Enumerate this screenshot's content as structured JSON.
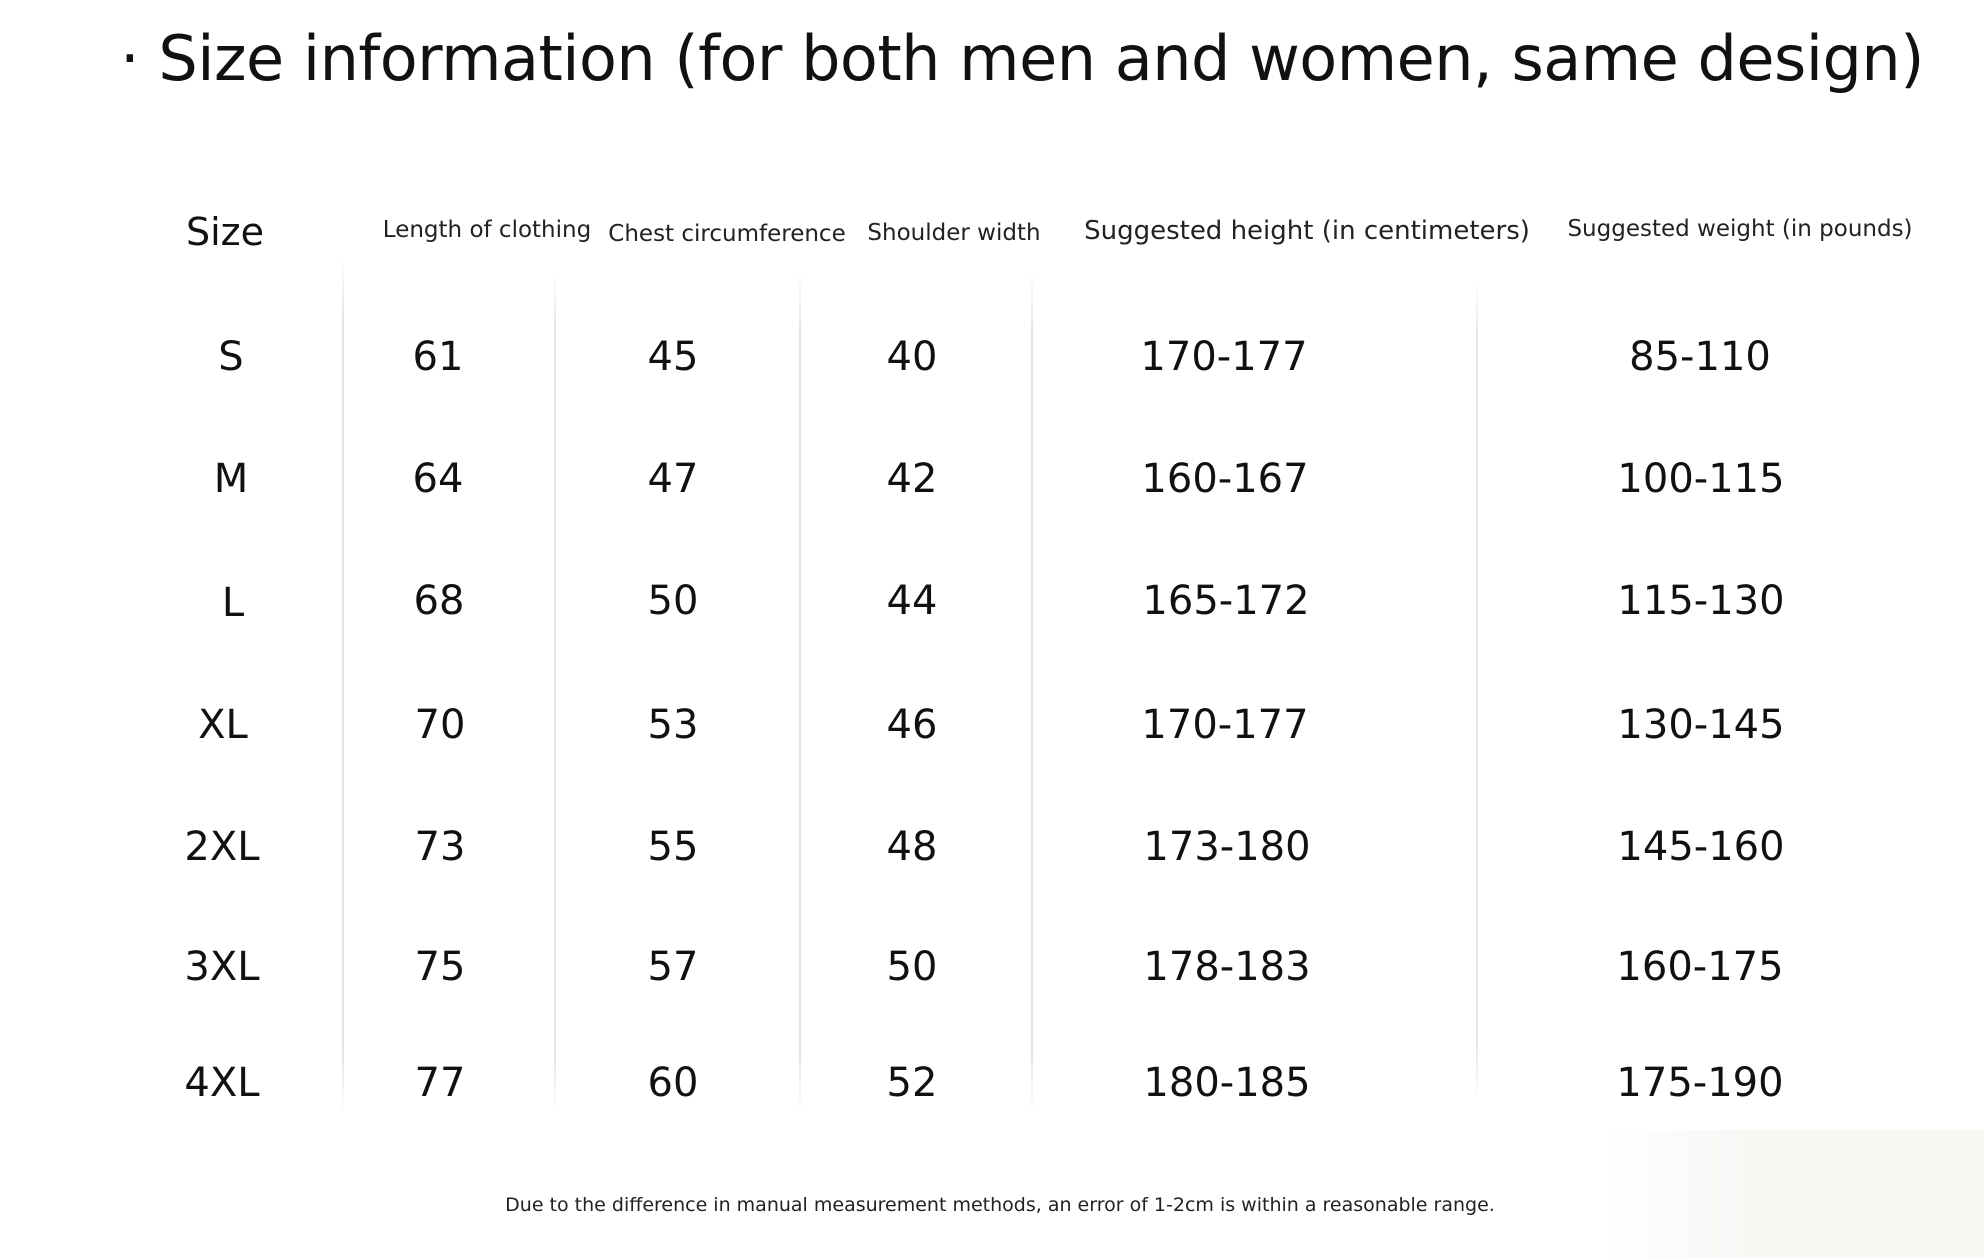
{
  "title": "· Size information (for both men and women, same design)",
  "table": {
    "headers": [
      "Size",
      "Length of clothing",
      "Chest circumference",
      "Shoulder width",
      "Suggested height (in centimeters)",
      "Suggested weight (in pounds)"
    ],
    "rows": [
      [
        "S",
        "61",
        "45",
        "40",
        "170-177",
        "85-110"
      ],
      [
        "M",
        "64",
        "47",
        "42",
        "160-167",
        "100-115"
      ],
      [
        "L",
        "68",
        "50",
        "44",
        "165-172",
        "115-130"
      ],
      [
        "XL",
        "70",
        "53",
        "46",
        "170-177",
        "130-145"
      ],
      [
        "2XL",
        "73",
        "55",
        "48",
        "173-180",
        "145-160"
      ],
      [
        "3XL",
        "75",
        "57",
        "50",
        "178-183",
        "160-175"
      ],
      [
        "4XL",
        "77",
        "60",
        "52",
        "180-185",
        "175-190"
      ]
    ]
  },
  "footnote": "Due to the difference in manual measurement methods, an error of 1-2cm is within a reasonable range."
}
